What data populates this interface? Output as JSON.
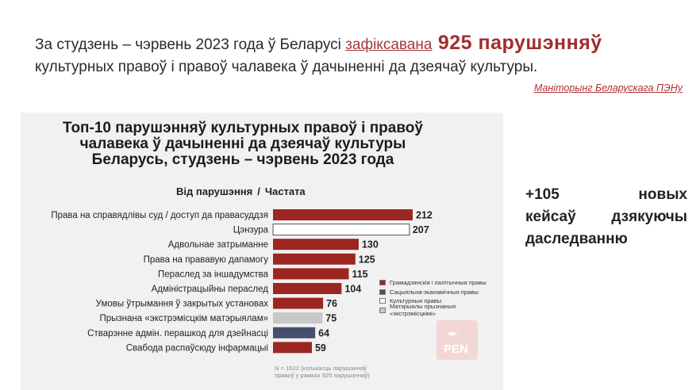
{
  "headline": {
    "part1": "За студзень – чэрвень 2023 года ў Беларусі ",
    "link": "зафіксавана",
    "big": " 925 парушэнняў",
    "part2": " культурных правоў і правоў чалавека ў дачыненні да дзеячаў культуры."
  },
  "source": "Маніторынг Беларускага ПЭНу",
  "side_note": {
    "line1": "+105 новых",
    "line2": "кейсаў дзякуючы",
    "line3": "даследванню"
  },
  "logo": {
    "text": "PEN",
    "icon": "quill-pen-icon"
  },
  "footnote": "N = 1622 (колькасць парушэнняў правоў у рамках 925 парушэнняў)",
  "colors": {
    "red": "#9b2622",
    "blue": "#45506e",
    "white": "#ffffff",
    "gray": "#c8c8c8"
  },
  "chart_data": {
    "type": "bar",
    "orientation": "horizontal",
    "title_lines": [
      "Топ-10 парушэнняў культурных правоў і правоў",
      "чалавека ў дачыненні да дзеячаў культуры",
      "Беларусь, студзень – чэрвень 2023 года"
    ],
    "subtitle_left": "Від парушэння",
    "subtitle_sep": "/",
    "subtitle_right": "Частата",
    "categories": [
      "Права на справядлівы суд / доступ да правасуддзя",
      "Цэнзура",
      "Адвольнае затрыманне",
      "Права на прававую дапамогу",
      "Пераслед за іншадумства",
      "Адміністрацыйны пераслед",
      "Умовы ўтрымання ў закрытых установах",
      "Прызнана «экстрэмісцкім матэрыялам»",
      "Стварэнне адмін. перашкод для дзейнасці",
      "Свабода распаўсюду інфармацыі"
    ],
    "values": [
      212,
      207,
      130,
      125,
      115,
      104,
      76,
      75,
      64,
      59
    ],
    "groups": [
      "civil",
      "cultural",
      "civil",
      "civil",
      "civil",
      "civil",
      "civil",
      "extremist",
      "socio",
      "civil"
    ],
    "legend": [
      {
        "key": "civil",
        "label": "Грамадзянскія і палітычныя правы",
        "color": "#9b2622"
      },
      {
        "key": "socio",
        "label": "Сацыяльна-эканамічныя правы",
        "color": "#45506e"
      },
      {
        "key": "cultural",
        "label": "Культурныя правы",
        "color": "#ffffff"
      },
      {
        "key": "extremist",
        "label": "Матэрыялы прызнаныя «экстрэмісцкімі»",
        "color": "#c8c8c8"
      }
    ],
    "legend_position": "right",
    "grid": false
  }
}
